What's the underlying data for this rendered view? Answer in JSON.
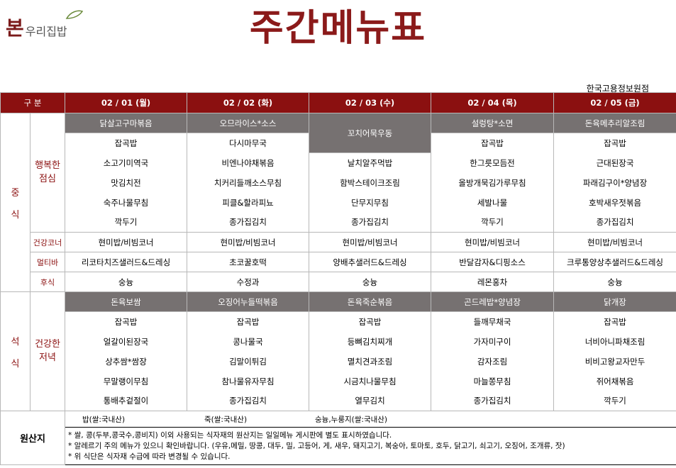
{
  "logo": {
    "mark": "본",
    "text": "우리집밥"
  },
  "title": "주간메뉴표",
  "branch": "한국고용정보원점",
  "header": {
    "gubun": "구 분",
    "days": [
      "02 / 01 (월)",
      "02 / 02 (화)",
      "02 / 03 (수)",
      "02 / 04 (목)",
      "02 / 05 (금)"
    ]
  },
  "lunch": {
    "section": "중식",
    "section_chars": [
      "중",
      "식"
    ],
    "main_label": "행복한 점심",
    "main_label_lines": [
      "행복한",
      "점심"
    ],
    "main_dish": [
      "닭살고구마볶음",
      "오므라이스*소스",
      "꼬치어묵우동",
      "설렁탕*소면",
      "돈육메추리알조림"
    ],
    "rows": [
      [
        "잡곡밥",
        "다시마무국",
        "",
        "잡곡밥",
        "잡곡밥"
      ],
      [
        "소고기미역국",
        "비엔나야채볶음",
        "날치알주먹밥",
        "한그릇모듬전",
        "근대된장국"
      ],
      [
        "맛김치전",
        "치커리들깨소스무침",
        "함박스테이크조림",
        "올방개묵김가루무침",
        "파래김구이*양념장"
      ],
      [
        "숙주나물무침",
        "피클&할라피뇨",
        "단무지무침",
        "세발나물",
        "호박새우젓볶음"
      ],
      [
        "깍두기",
        "종가집김치",
        "종가집김치",
        "깍두기",
        "종가집김치"
      ]
    ],
    "health_label": "건강코너",
    "health": [
      "현미밥/비빔코너",
      "현미밥/비빔코너",
      "현미밥/비빔코너",
      "현미밥/비빔코너",
      "현미밥/비빔코너"
    ],
    "multi_label": "멀티바",
    "multi": [
      "리코타치즈샐러드&드레싱",
      "초코꿀호떡",
      "양배추샐러드&드레싱",
      "반달감자&디핑소스",
      "크루통양상추샐러드&드레싱"
    ],
    "dessert_label": "후식",
    "dessert": [
      "숭늉",
      "수정과",
      "숭늉",
      "레몬홍차",
      "숭늉"
    ]
  },
  "dinner": {
    "section": "석식",
    "section_chars": [
      "석",
      "식"
    ],
    "main_label": "건강한 저녁",
    "main_label_lines": [
      "건강한",
      "저녁"
    ],
    "main_dish": [
      "돈육보쌈",
      "오징어누들떡볶음",
      "돈육죽순볶음",
      "곤드레밥*양념장",
      "닭개장"
    ],
    "rows": [
      [
        "잡곡밥",
        "잡곡밥",
        "잡곡밥",
        "들깨무채국",
        "잡곡밥"
      ],
      [
        "얼갈이된장국",
        "콩나물국",
        "등뼈김치찌개",
        "가자미구이",
        "너비아니파채조림"
      ],
      [
        "상추쌈*쌈장",
        "김말이튀김",
        "멸치견과조림",
        "감자조림",
        "비비고왕교자만두"
      ],
      [
        "무말랭이무침",
        "참나물유자무침",
        "시금치나물무침",
        "마늘쫑무침",
        "쥐어채볶음"
      ],
      [
        "통배추겉절이",
        "종가집김치",
        "열무김치",
        "종가집김치",
        "깍두기"
      ]
    ]
  },
  "origin": {
    "label": "원산지",
    "items": [
      "밥(쌀:국내산)",
      "죽(쌀:국내산)",
      "숭늉,누룽지(쌀:국내산)"
    ],
    "notes": [
      "* 쌀, 콩(두부,콩국수,콩비지) 이외 사용되는 식자재의 원산지는 일일메뉴 게시판에 별도 표시하였습니다.",
      "* 알레르기 주의 메뉴가 있으니 확인바랍니다. (우유,메밀, 땅콩, 대두, 밀, 고등어, 게, 새우, 돼지고기, 복숭아, 토마토, 호두, 닭고기, 쇠고기, 오징어, 조개류, 잣)",
      "* 위 식단은 식자재 수급에 따라 변경될 수 있습니다."
    ]
  },
  "colors": {
    "brand": "#8b1010",
    "dish_bg": "#767171",
    "header_bg": "#8b1010"
  }
}
